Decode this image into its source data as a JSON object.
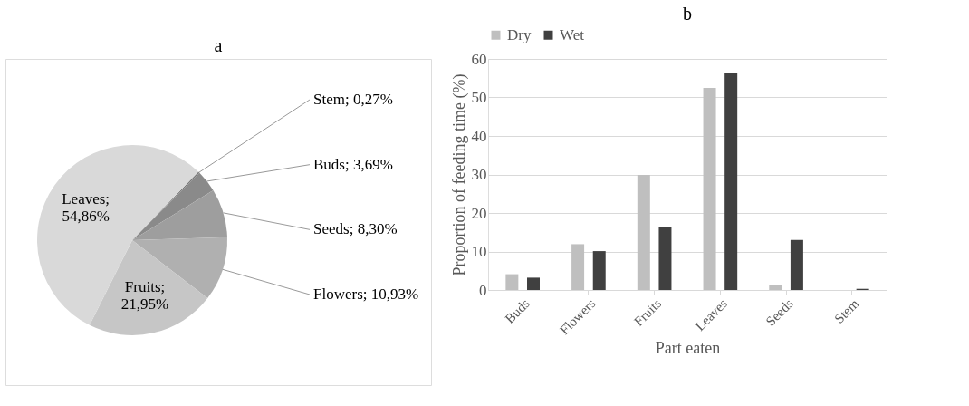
{
  "chart_data": [
    {
      "type": "pie",
      "title": "a",
      "categories": [
        "Stem; 0,27%",
        "Buds; 3,69%",
        "Seeds; 8,30%",
        "Flowers; 10,93%",
        "Fruits; 21,95%",
        "Leaves; 54,86%"
      ],
      "values": [
        0.27,
        3.69,
        8.3,
        10.93,
        21.95,
        54.86
      ],
      "colors": [
        "#7a7a7a",
        "#8a8a8a",
        "#9e9e9e",
        "#b0b0b0",
        "#c6c6c6",
        "#d9d9d9"
      ]
    },
    {
      "type": "bar",
      "title": "b",
      "xlabel": "Part eaten",
      "ylabel": "Proportion of feeding time (%)",
      "categories": [
        "Buds",
        "Flowers",
        "Fruits",
        "Leaves",
        "Seeds",
        "Stem"
      ],
      "series": [
        {
          "name": "Dry",
          "color": "#bfbfbf",
          "values": [
            4.1,
            11.9,
            29.9,
            52.5,
            1.4,
            0
          ]
        },
        {
          "name": "Wet",
          "color": "#404040",
          "values": [
            3.2,
            10.1,
            16.3,
            56.5,
            13.0,
            0.3
          ]
        }
      ],
      "ylim": [
        0,
        60
      ],
      "yticks": [
        0,
        10,
        20,
        30,
        40,
        50,
        60
      ],
      "grid": "y",
      "legend": "top"
    }
  ]
}
